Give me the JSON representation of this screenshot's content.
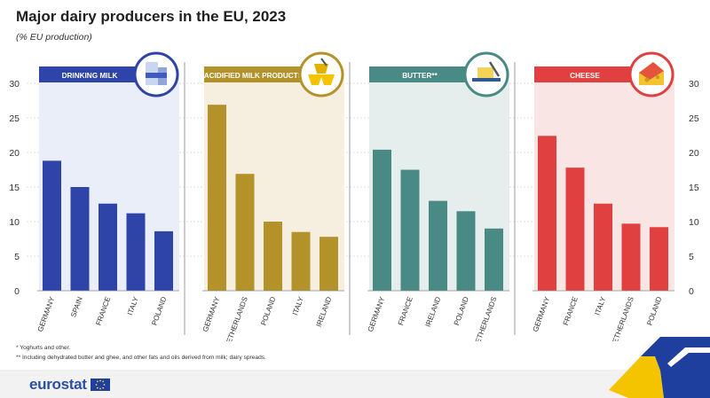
{
  "title": "Major dairy producers in the EU, 2023",
  "subtitle": "(% EU production)",
  "notes": [
    "* Yoghurts and other.",
    "** Including dehydrated butter and ghee, and other fats and oils derived from milk; dairy spreads."
  ],
  "brand": "eurostat",
  "colors": {
    "drinking_milk": "#2e44a8",
    "acidified": "#b3922a",
    "butter": "#4a8a84",
    "cheese": "#e0403f"
  },
  "chart_data": [
    {
      "type": "bar",
      "title": "DRINKING MILK",
      "icon": "milk-carton-icon",
      "categories": [
        "GERMANY",
        "SPAIN",
        "FRANCE",
        "ITALY",
        "POLAND"
      ],
      "values": [
        18.8,
        15.0,
        12.6,
        11.2,
        8.6
      ],
      "ylim": [
        0,
        30
      ],
      "yticks": [
        "0",
        "5",
        "10",
        "15",
        "20",
        "25",
        "30"
      ],
      "color": "#2e44a8",
      "bg": "#e9eef8"
    },
    {
      "type": "bar",
      "title": "ACIDIFIED MILK PRODUCTS*",
      "icon": "yoghurt-cups-icon",
      "categories": [
        "GERMANY",
        "NETHERLANDS",
        "POLAND",
        "ITALY",
        "IRELAND"
      ],
      "values": [
        26.9,
        16.9,
        10.0,
        8.5,
        7.8
      ],
      "ylim": [
        0,
        30
      ],
      "color": "#b3922a",
      "bg": "#f6efdf"
    },
    {
      "type": "bar",
      "title": "BUTTER**",
      "icon": "butter-dish-icon",
      "categories": [
        "GERMANY",
        "FRANCE",
        "IRELAND",
        "POLAND",
        "NETHERLANDS"
      ],
      "values": [
        20.4,
        17.5,
        13.0,
        11.5,
        9.0
      ],
      "ylim": [
        0,
        30
      ],
      "color": "#4a8a84",
      "bg": "#e5eeec"
    },
    {
      "type": "bar",
      "title": "CHEESE",
      "icon": "cheese-icon",
      "categories": [
        "GERMANY",
        "FRANCE",
        "ITALY",
        "NETHERLANDS",
        "POLAND"
      ],
      "values": [
        22.4,
        17.8,
        12.6,
        9.7,
        9.2
      ],
      "ylim": [
        0,
        30
      ],
      "yticks": [
        "0",
        "5",
        "10",
        "15",
        "20",
        "25",
        "30"
      ],
      "color": "#e0403f",
      "bg": "#f9e5e4"
    }
  ]
}
